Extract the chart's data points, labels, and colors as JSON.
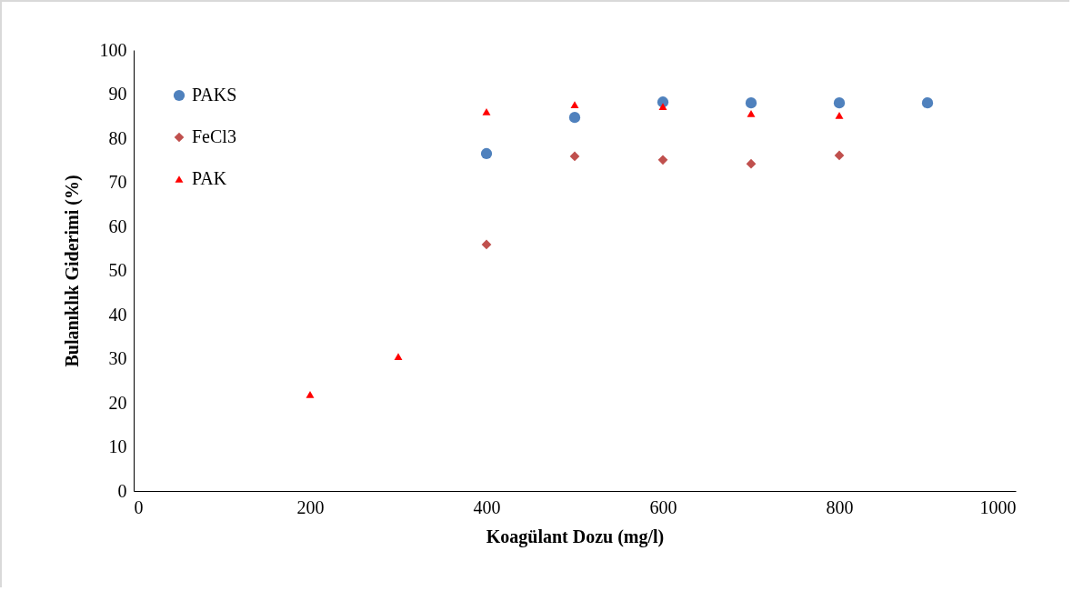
{
  "chart_data": {
    "type": "scatter",
    "xlabel": "Koagülant Dozu (mg/l)",
    "ylabel": "Bulanıklık Giderimi (%)",
    "xlim": [
      0,
      1000
    ],
    "xticks": [
      0,
      200,
      400,
      600,
      800,
      1000
    ],
    "ylim": [
      0,
      100
    ],
    "yticks": [
      0,
      10,
      20,
      30,
      40,
      50,
      60,
      70,
      80,
      90,
      100
    ],
    "grid": false,
    "legend": "top left",
    "series": [
      {
        "name": "PAKS",
        "color": "#4f81bd",
        "marker": "circle",
        "x": [
          400,
          500,
          600,
          700,
          800,
          900
        ],
        "values": [
          76.5,
          84.7,
          88.2,
          88.0,
          88.0,
          88.0
        ]
      },
      {
        "name": "FeCl3",
        "color": "#c0504d",
        "marker": "diamond",
        "x": [
          400,
          500,
          600,
          700,
          800
        ],
        "values": [
          55.9,
          75.9,
          75.1,
          74.2,
          76.1
        ]
      },
      {
        "name": "PAK",
        "color": "#ff0000",
        "marker": "triangle",
        "x": [
          200,
          300,
          400,
          500,
          600,
          700,
          800
        ],
        "values": [
          21.9,
          30.5,
          86.0,
          87.6,
          87.2,
          85.6,
          85.2
        ]
      }
    ]
  }
}
